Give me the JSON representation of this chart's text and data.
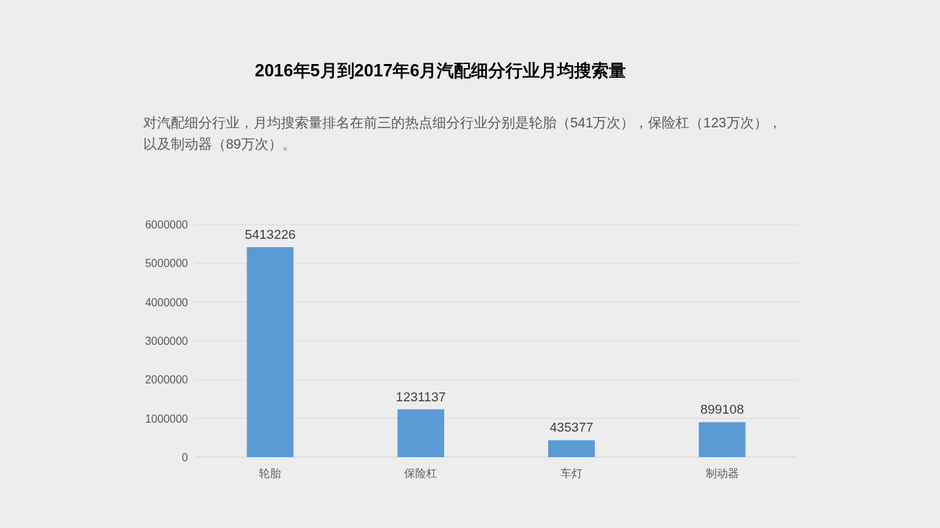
{
  "chart_data": {
    "type": "bar",
    "title": "2016年5月到2017年6月汽配细分行业月均搜索量",
    "subtitle": "对汽配细分行业，月均搜索量排名在前三的热点细分行业分别是轮胎（541万次），保险杠（123万次），以及制动器（89万次）。",
    "categories": [
      "轮胎",
      "保险杠",
      "车灯",
      "制动器"
    ],
    "values": [
      5413226,
      1231137,
      435377,
      899108
    ],
    "color": "#5b9bd5",
    "ylim": [
      0,
      6000000
    ],
    "yticks": [
      0,
      1000000,
      2000000,
      3000000,
      4000000,
      5000000,
      6000000
    ],
    "grid": "y",
    "data_labels": true
  }
}
